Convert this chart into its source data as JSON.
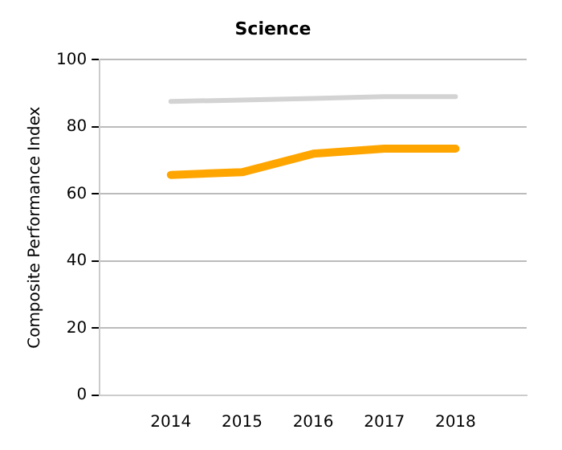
{
  "chart_data": {
    "type": "line",
    "title": "Science",
    "ylabel": "Composite Performance Index",
    "categories": [
      "2014",
      "2015",
      "2016",
      "2017",
      "2018"
    ],
    "series": [
      {
        "color": "#d3d3d3",
        "values": [
          87.6,
          88,
          88.5,
          89,
          89
        ]
      },
      {
        "color": "#ffa500",
        "values": [
          65.7,
          66.5,
          72,
          73.5,
          73.5
        ]
      }
    ],
    "ylim": [
      0,
      100
    ],
    "yticks": [
      0,
      20,
      40,
      60,
      80,
      100
    ],
    "grid": "y",
    "legend": false,
    "line_style": "solid"
  }
}
